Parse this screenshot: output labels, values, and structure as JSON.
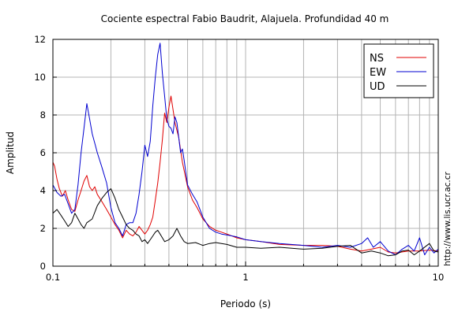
{
  "chart_data": {
    "type": "line",
    "title": "Cociente espectral Fabio Baudrit, Alajuela. Profundidad 40 m",
    "xlabel": "Periodo (s)",
    "ylabel": "Amplitud",
    "xscale": "log",
    "xlim": [
      0.1,
      10
    ],
    "ylim": [
      0,
      12
    ],
    "xticks": [
      {
        "value": 0.1,
        "label": "0.1"
      },
      {
        "value": 1,
        "label": "1"
      },
      {
        "value": 10,
        "label": "10"
      }
    ],
    "yticks": [
      {
        "value": 0,
        "label": "0"
      },
      {
        "value": 2,
        "label": "2"
      },
      {
        "value": 4,
        "label": "4"
      },
      {
        "value": 6,
        "label": "6"
      },
      {
        "value": 8,
        "label": "8"
      },
      {
        "value": 10,
        "label": "10"
      },
      {
        "value": 12,
        "label": "12"
      }
    ],
    "grid": true,
    "legend_position": "top-right",
    "watermark": "http://www.lis.ucr.ac.cr",
    "series": [
      {
        "name": "NS",
        "color": "#e00000",
        "points": [
          [
            0.1,
            5.5
          ],
          [
            0.102,
            5.3
          ],
          [
            0.105,
            4.6
          ],
          [
            0.108,
            4.1
          ],
          [
            0.112,
            3.7
          ],
          [
            0.116,
            4.0
          ],
          [
            0.12,
            3.5
          ],
          [
            0.125,
            3.0
          ],
          [
            0.13,
            2.9
          ],
          [
            0.135,
            3.5
          ],
          [
            0.14,
            4.0
          ],
          [
            0.145,
            4.5
          ],
          [
            0.15,
            4.8
          ],
          [
            0.155,
            4.2
          ],
          [
            0.16,
            4.0
          ],
          [
            0.165,
            4.2
          ],
          [
            0.17,
            3.8
          ],
          [
            0.18,
            3.4
          ],
          [
            0.19,
            3.0
          ],
          [
            0.2,
            2.6
          ],
          [
            0.21,
            2.2
          ],
          [
            0.22,
            1.9
          ],
          [
            0.23,
            1.5
          ],
          [
            0.24,
            1.9
          ],
          [
            0.25,
            1.7
          ],
          [
            0.26,
            1.6
          ],
          [
            0.27,
            1.8
          ],
          [
            0.28,
            2.1
          ],
          [
            0.3,
            1.7
          ],
          [
            0.31,
            1.9
          ],
          [
            0.32,
            2.2
          ],
          [
            0.33,
            2.6
          ],
          [
            0.34,
            3.5
          ],
          [
            0.35,
            4.4
          ],
          [
            0.36,
            5.5
          ],
          [
            0.37,
            6.7
          ],
          [
            0.38,
            8.1
          ],
          [
            0.39,
            7.6
          ],
          [
            0.4,
            8.4
          ],
          [
            0.41,
            9.0
          ],
          [
            0.42,
            8.3
          ],
          [
            0.43,
            7.6
          ],
          [
            0.45,
            6.8
          ],
          [
            0.47,
            5.5
          ],
          [
            0.5,
            4.2
          ],
          [
            0.53,
            3.5
          ],
          [
            0.56,
            3.1
          ],
          [
            0.6,
            2.5
          ],
          [
            0.65,
            2.1
          ],
          [
            0.7,
            1.9
          ],
          [
            0.75,
            1.8
          ],
          [
            0.8,
            1.7
          ],
          [
            0.9,
            1.5
          ],
          [
            1.0,
            1.4
          ],
          [
            1.2,
            1.3
          ],
          [
            1.5,
            1.15
          ],
          [
            2.0,
            1.1
          ],
          [
            2.5,
            1.1
          ],
          [
            3.0,
            1.05
          ],
          [
            3.5,
            0.9
          ],
          [
            4.0,
            0.8
          ],
          [
            4.5,
            0.9
          ],
          [
            5.0,
            1.0
          ],
          [
            5.5,
            0.75
          ],
          [
            6.0,
            0.7
          ],
          [
            7.0,
            0.8
          ],
          [
            8.0,
            0.8
          ],
          [
            9.0,
            0.85
          ],
          [
            10.0,
            0.8
          ]
        ]
      },
      {
        "name": "EW",
        "color": "#0000d0",
        "points": [
          [
            0.1,
            4.3
          ],
          [
            0.105,
            3.9
          ],
          [
            0.11,
            3.7
          ],
          [
            0.115,
            3.8
          ],
          [
            0.12,
            3.3
          ],
          [
            0.125,
            2.8
          ],
          [
            0.13,
            3.0
          ],
          [
            0.135,
            4.3
          ],
          [
            0.14,
            6.0
          ],
          [
            0.145,
            7.3
          ],
          [
            0.15,
            8.6
          ],
          [
            0.155,
            7.8
          ],
          [
            0.16,
            7.0
          ],
          [
            0.165,
            6.5
          ],
          [
            0.17,
            6.0
          ],
          [
            0.175,
            5.6
          ],
          [
            0.18,
            5.2
          ],
          [
            0.19,
            4.4
          ],
          [
            0.2,
            3.1
          ],
          [
            0.21,
            2.3
          ],
          [
            0.22,
            2.0
          ],
          [
            0.23,
            1.6
          ],
          [
            0.24,
            2.2
          ],
          [
            0.25,
            2.3
          ],
          [
            0.26,
            2.3
          ],
          [
            0.27,
            2.8
          ],
          [
            0.28,
            3.8
          ],
          [
            0.29,
            5.0
          ],
          [
            0.3,
            6.4
          ],
          [
            0.31,
            5.8
          ],
          [
            0.32,
            6.6
          ],
          [
            0.33,
            8.5
          ],
          [
            0.34,
            10.0
          ],
          [
            0.35,
            11.2
          ],
          [
            0.36,
            11.8
          ],
          [
            0.37,
            10.2
          ],
          [
            0.38,
            9.0
          ],
          [
            0.39,
            7.8
          ],
          [
            0.4,
            7.4
          ],
          [
            0.41,
            7.3
          ],
          [
            0.42,
            7.0
          ],
          [
            0.43,
            7.9
          ],
          [
            0.44,
            7.6
          ],
          [
            0.45,
            6.8
          ],
          [
            0.46,
            6.0
          ],
          [
            0.47,
            6.2
          ],
          [
            0.48,
            5.6
          ],
          [
            0.5,
            4.3
          ],
          [
            0.53,
            3.8
          ],
          [
            0.56,
            3.4
          ],
          [
            0.6,
            2.6
          ],
          [
            0.65,
            2.0
          ],
          [
            0.7,
            1.8
          ],
          [
            0.75,
            1.7
          ],
          [
            0.8,
            1.65
          ],
          [
            0.9,
            1.55
          ],
          [
            1.0,
            1.4
          ],
          [
            1.2,
            1.3
          ],
          [
            1.5,
            1.2
          ],
          [
            2.0,
            1.1
          ],
          [
            2.5,
            1.0
          ],
          [
            3.0,
            1.1
          ],
          [
            3.5,
            1.0
          ],
          [
            4.0,
            1.2
          ],
          [
            4.3,
            1.5
          ],
          [
            4.6,
            1.0
          ],
          [
            5.0,
            1.3
          ],
          [
            5.5,
            0.8
          ],
          [
            6.0,
            0.6
          ],
          [
            6.5,
            0.9
          ],
          [
            7.0,
            1.1
          ],
          [
            7.5,
            0.8
          ],
          [
            8.0,
            1.5
          ],
          [
            8.5,
            0.6
          ],
          [
            9.0,
            1.0
          ],
          [
            9.5,
            0.7
          ],
          [
            10.0,
            0.9
          ]
        ]
      },
      {
        "name": "UD",
        "color": "#000000",
        "points": [
          [
            0.1,
            2.8
          ],
          [
            0.105,
            3.0
          ],
          [
            0.11,
            2.7
          ],
          [
            0.115,
            2.4
          ],
          [
            0.12,
            2.1
          ],
          [
            0.125,
            2.3
          ],
          [
            0.13,
            2.8
          ],
          [
            0.135,
            2.5
          ],
          [
            0.14,
            2.2
          ],
          [
            0.145,
            2.0
          ],
          [
            0.15,
            2.3
          ],
          [
            0.16,
            2.5
          ],
          [
            0.17,
            3.2
          ],
          [
            0.18,
            3.6
          ],
          [
            0.19,
            3.9
          ],
          [
            0.2,
            4.1
          ],
          [
            0.21,
            3.6
          ],
          [
            0.22,
            3.0
          ],
          [
            0.23,
            2.6
          ],
          [
            0.24,
            2.2
          ],
          [
            0.25,
            2.0
          ],
          [
            0.26,
            1.9
          ],
          [
            0.27,
            1.7
          ],
          [
            0.28,
            1.6
          ],
          [
            0.29,
            1.3
          ],
          [
            0.3,
            1.4
          ],
          [
            0.31,
            1.2
          ],
          [
            0.32,
            1.4
          ],
          [
            0.33,
            1.6
          ],
          [
            0.34,
            1.8
          ],
          [
            0.35,
            1.9
          ],
          [
            0.36,
            1.7
          ],
          [
            0.37,
            1.5
          ],
          [
            0.38,
            1.3
          ],
          [
            0.4,
            1.4
          ],
          [
            0.42,
            1.6
          ],
          [
            0.44,
            2.0
          ],
          [
            0.46,
            1.6
          ],
          [
            0.48,
            1.3
          ],
          [
            0.5,
            1.2
          ],
          [
            0.55,
            1.25
          ],
          [
            0.6,
            1.1
          ],
          [
            0.65,
            1.2
          ],
          [
            0.7,
            1.25
          ],
          [
            0.75,
            1.2
          ],
          [
            0.8,
            1.15
          ],
          [
            0.9,
            1.0
          ],
          [
            1.0,
            1.0
          ],
          [
            1.2,
            0.95
          ],
          [
            1.5,
            1.0
          ],
          [
            2.0,
            0.9
          ],
          [
            2.5,
            0.95
          ],
          [
            3.0,
            1.05
          ],
          [
            3.5,
            1.1
          ],
          [
            4.0,
            0.7
          ],
          [
            4.5,
            0.8
          ],
          [
            5.0,
            0.7
          ],
          [
            5.5,
            0.55
          ],
          [
            6.0,
            0.6
          ],
          [
            6.5,
            0.8
          ],
          [
            7.0,
            0.85
          ],
          [
            7.5,
            0.6
          ],
          [
            8.0,
            0.8
          ],
          [
            9.0,
            1.2
          ],
          [
            9.5,
            0.8
          ],
          [
            10.0,
            0.75
          ]
        ]
      }
    ]
  }
}
